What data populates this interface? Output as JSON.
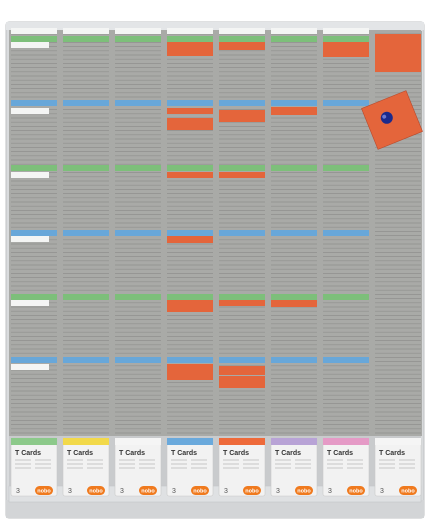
{
  "scene": {
    "subject": "t-card-planning-board",
    "colors": {
      "board": "#a9aaa7",
      "slot_line": "#8f908d",
      "frame": "#d9dbdd",
      "white_card": "#f4f5f4",
      "green_card": "#7dbf7a",
      "blue_card": "#68a7d9",
      "orange_card": "#e4653b",
      "magnet": "#1b2a8c",
      "pack_body": "#f2f2f2",
      "logo": "#f07a1e"
    },
    "columns": 8,
    "packs": [
      {
        "title": "T Cards",
        "count": "3",
        "logo": "nobo",
        "cap_color": "#8cc98a"
      },
      {
        "title": "T Cards",
        "count": "3",
        "logo": "nobo",
        "cap_color": "#f2d94a"
      },
      {
        "title": "T Cards",
        "count": "3",
        "logo": "nobo",
        "cap_color": "#f5f5f5"
      },
      {
        "title": "T Cards",
        "count": "3",
        "logo": "nobo",
        "cap_color": "#6aa9dc"
      },
      {
        "title": "T Cards",
        "count": "3",
        "logo": "nobo",
        "cap_color": "#ee6a3a"
      },
      {
        "title": "T Cards",
        "count": "3",
        "logo": "nobo",
        "cap_color": "#b8a3d6"
      },
      {
        "title": "T Cards",
        "count": "3",
        "logo": "nobo",
        "cap_color": "#e59ac6"
      },
      {
        "title": "T Cards",
        "count": "3",
        "logo": "nobo",
        "cap_color": "#f5f5f5"
      }
    ]
  }
}
